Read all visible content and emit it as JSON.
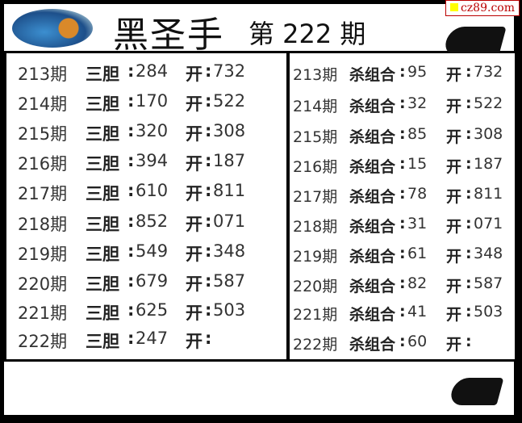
{
  "header": {
    "title": "黑圣手",
    "issue": "第 222 期",
    "brand": "cz89.com"
  },
  "left": {
    "label_a": "三胆",
    "label_b": "开",
    "rows": [
      {
        "period": "213期",
        "value": "284",
        "open": "732"
      },
      {
        "period": "214期",
        "value": "170",
        "open": "522"
      },
      {
        "period": "215期",
        "value": "320",
        "open": "308"
      },
      {
        "period": "216期",
        "value": "394",
        "open": "187"
      },
      {
        "period": "217期",
        "value": "610",
        "open": "811"
      },
      {
        "period": "218期",
        "value": "852",
        "open": "071"
      },
      {
        "period": "219期",
        "value": "549",
        "open": "348"
      },
      {
        "period": "220期",
        "value": "679",
        "open": "587"
      },
      {
        "period": "221期",
        "value": "625",
        "open": "503"
      },
      {
        "period": "222期",
        "value": "247",
        "open": ""
      }
    ]
  },
  "right": {
    "label_a": "杀组合",
    "label_b": "开",
    "rows": [
      {
        "period": "213期",
        "value": "95",
        "open": "732"
      },
      {
        "period": "214期",
        "value": "32",
        "open": "522"
      },
      {
        "period": "215期",
        "value": "85",
        "open": "308"
      },
      {
        "period": "216期",
        "value": "15",
        "open": "187"
      },
      {
        "period": "217期",
        "value": "78",
        "open": "811"
      },
      {
        "period": "218期",
        "value": "31",
        "open": "071"
      },
      {
        "period": "219期",
        "value": "61",
        "open": "348"
      },
      {
        "period": "220期",
        "value": "82",
        "open": "587"
      },
      {
        "period": "221期",
        "value": "41",
        "open": "503"
      },
      {
        "period": "222期",
        "value": "60",
        "open": ""
      }
    ]
  }
}
